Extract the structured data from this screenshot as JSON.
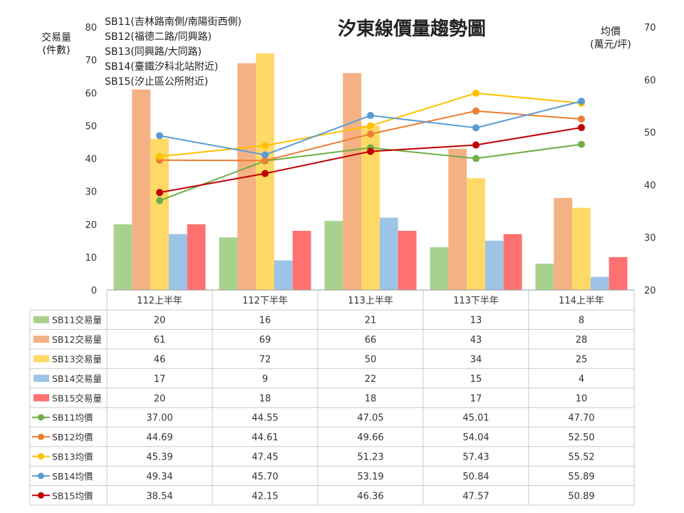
{
  "chart_data": {
    "type": "bar",
    "title": "汐東線價量趨勢圖",
    "notes": [
      "SB11(吉林路南側/南陽街西側)",
      "SB12(福德二路/同興路)",
      "SB13(同興路/大同路)",
      "SB14(臺鐵汐科北站附近)",
      "SB15(汐止區公所附近)"
    ],
    "ylabel_left": [
      "交易量",
      "(件數)"
    ],
    "ylabel_right": [
      "均價",
      "(萬元/坪)"
    ],
    "ylim_left": [
      0,
      80
    ],
    "ylim_right": [
      20,
      70
    ],
    "yticks_left": [
      0,
      10,
      20,
      30,
      40,
      50,
      60,
      70,
      80
    ],
    "yticks_right": [
      20,
      30,
      40,
      50,
      60,
      70
    ],
    "categories": [
      "112上半年",
      "112下半年",
      "113上半年",
      "113下半年",
      "114上半年"
    ],
    "bar_series": [
      {
        "name": "SB11交易量",
        "color": "#A9D18E",
        "values": [
          20,
          16,
          21,
          13,
          8
        ]
      },
      {
        "name": "SB12交易量",
        "color": "#F4B183",
        "values": [
          61,
          69,
          66,
          43,
          28
        ]
      },
      {
        "name": "SB13交易量",
        "color": "#FFD966",
        "values": [
          46,
          72,
          50,
          34,
          25
        ]
      },
      {
        "name": "SB14交易量",
        "color": "#9DC3E6",
        "values": [
          17,
          9,
          22,
          15,
          4
        ]
      },
      {
        "name": "SB15交易量",
        "color": "#FF7070",
        "values": [
          20,
          18,
          18,
          17,
          10
        ]
      }
    ],
    "line_series": [
      {
        "name": "SB11均價",
        "color": "#70AD47",
        "values": [
          "37.00",
          "44.55",
          "47.05",
          "45.01",
          "47.70"
        ]
      },
      {
        "name": "SB12均價",
        "color": "#ED7D31",
        "values": [
          "44.69",
          "44.61",
          "49.66",
          "54.04",
          "52.50"
        ]
      },
      {
        "name": "SB13均價",
        "color": "#FFC000",
        "values": [
          "45.39",
          "47.45",
          "51.23",
          "57.43",
          "55.52"
        ]
      },
      {
        "name": "SB14均價",
        "color": "#5B9BD5",
        "values": [
          "49.34",
          "45.70",
          "53.19",
          "50.84",
          "55.89"
        ]
      },
      {
        "name": "SB15均價",
        "color": "#C00000",
        "values": [
          "38.54",
          "42.15",
          "46.36",
          "47.57",
          "50.89"
        ]
      }
    ],
    "grid": false,
    "legend": "data-table"
  }
}
